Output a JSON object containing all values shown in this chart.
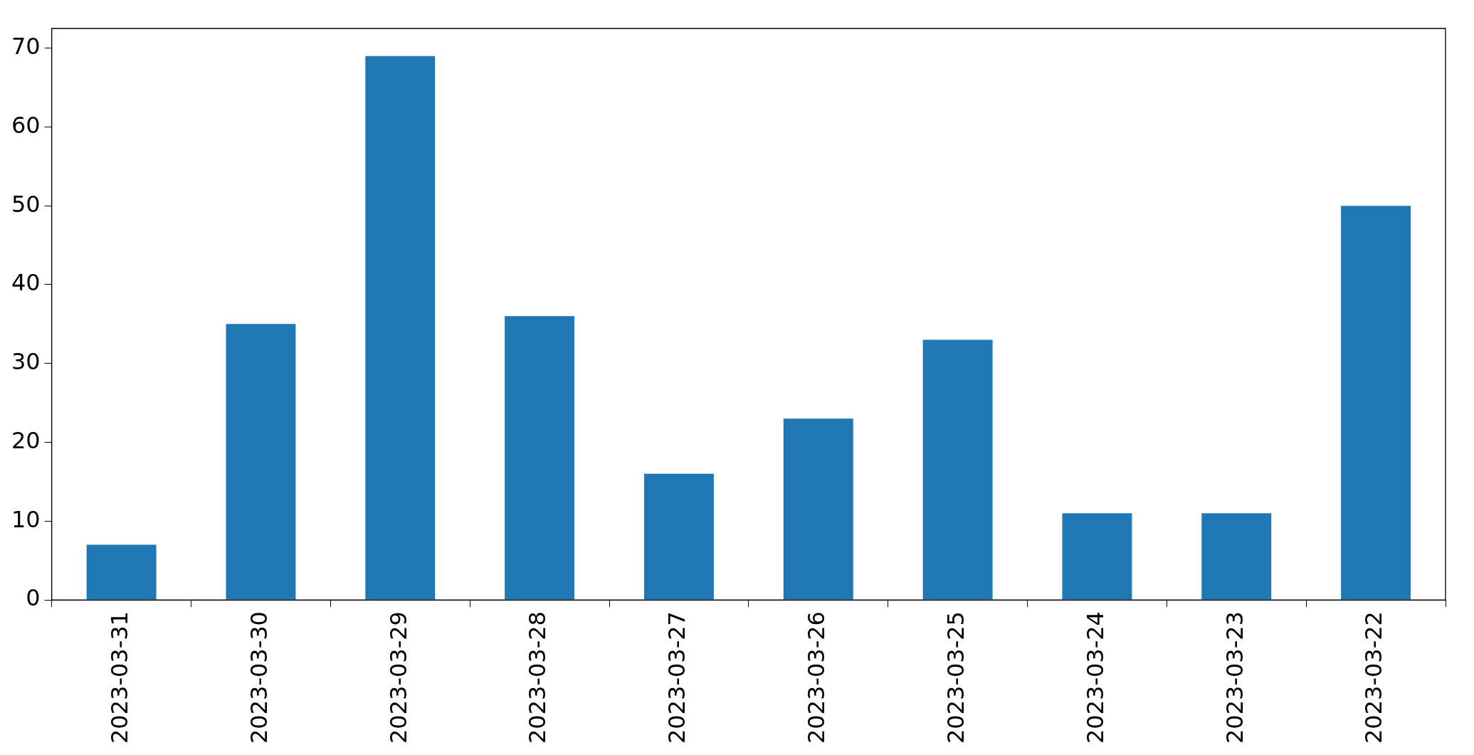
{
  "chart_data": {
    "type": "bar",
    "categories": [
      "2023-03-31",
      "2023-03-30",
      "2023-03-29",
      "2023-03-28",
      "2023-03-27",
      "2023-03-26",
      "2023-03-25",
      "2023-03-24",
      "2023-03-23",
      "2023-03-22"
    ],
    "values": [
      7,
      35,
      69,
      36,
      16,
      23,
      33,
      11,
      11,
      50
    ],
    "color": "#1f77b4",
    "ylim": [
      0,
      72.5
    ],
    "yticks": [
      0,
      10,
      20,
      30,
      40,
      50,
      60,
      70
    ]
  }
}
